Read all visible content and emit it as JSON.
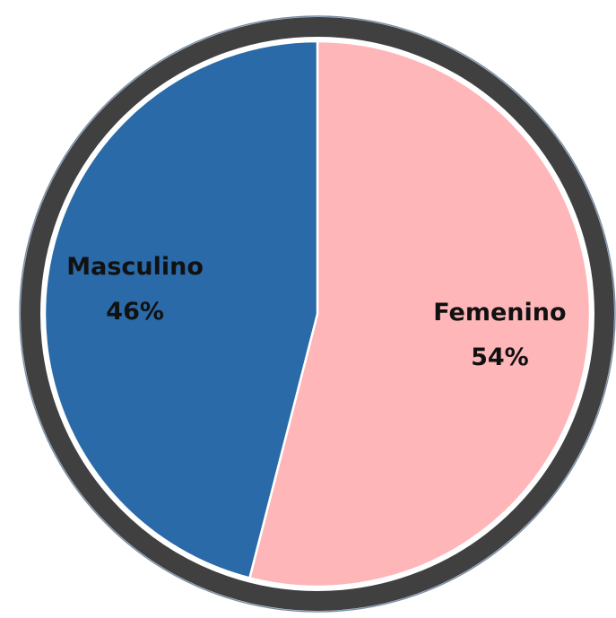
{
  "chart_data": {
    "type": "pie",
    "categories": [
      "Femenino",
      "Masculino"
    ],
    "values": [
      54,
      46
    ],
    "value_labels": [
      "54%",
      "46%"
    ],
    "colors": [
      "#ffb6b9",
      "#2a6aa8"
    ]
  }
}
